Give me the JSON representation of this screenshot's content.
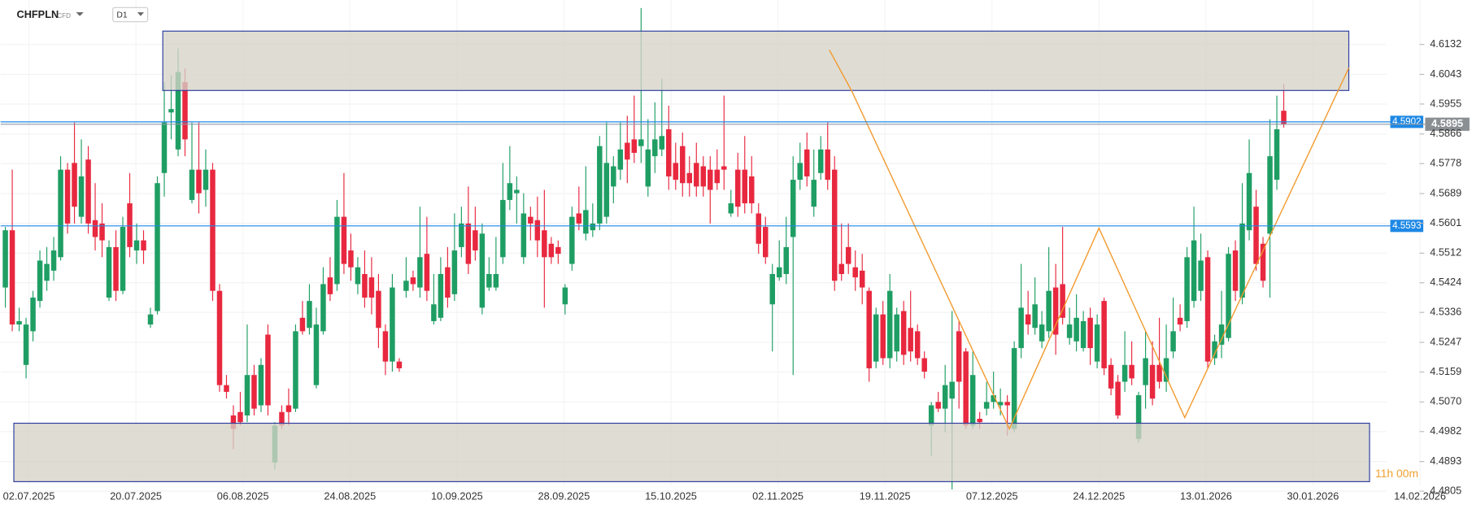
{
  "header": {
    "symbol": "CHFPLN",
    "instrument_type": "CFD",
    "timeframe": "D1"
  },
  "chart_data": {
    "type": "candlestick",
    "open": [
      4.541,
      4.558,
      4.53,
      4.518,
      4.528,
      4.537,
      4.543,
      4.546,
      4.55,
      4.576,
      4.578,
      4.562,
      4.579,
      4.561,
      4.56,
      4.538,
      4.553,
      4.54,
      4.566,
      4.552,
      4.555,
      4.53,
      4.534,
      4.575,
      4.593,
      4.582,
      4.602,
      4.567,
      4.576,
      4.57,
      4.576,
      4.54,
      4.512,
      4.503,
      4.504,
      4.503,
      4.515,
      4.506,
      4.527,
      4.489,
      4.504,
      4.506,
      4.505,
      4.532,
      4.529,
      4.512,
      4.528,
      4.544,
      4.542,
      4.562,
      4.552,
      4.542,
      4.545,
      4.544,
      4.54,
      4.528,
      4.519,
      4.519,
      4.54,
      4.544,
      4.541,
      4.551,
      4.531,
      4.532,
      4.547,
      4.539,
      4.553,
      4.56,
      4.558,
      4.535,
      4.541,
      4.541,
      4.55,
      4.567,
      4.569,
      4.55,
      4.562,
      4.561,
      4.558,
      4.554,
      4.553,
      4.536,
      4.548,
      4.563,
      4.557,
      4.558,
      4.56,
      4.562,
      4.571,
      4.576,
      4.584,
      4.585,
      4.583,
      4.571,
      4.58,
      4.582,
      4.588,
      4.578,
      4.583,
      4.575,
      4.578,
      4.577,
      4.576,
      4.576,
      4.577,
      4.563,
      4.576,
      4.576,
      4.574,
      4.563,
      4.559,
      4.536,
      4.544,
      4.545,
      4.556,
      4.573,
      4.582,
      4.565,
      4.575,
      4.582,
      4.576,
      4.548,
      4.553,
      4.547,
      4.546,
      4.54,
      4.519,
      4.533,
      4.52,
      4.522,
      4.534,
      4.529,
      4.528,
      4.52,
      4.5,
      4.507,
      4.505,
      4.508,
      4.528,
      4.522,
      4.5,
      4.502,
      4.505,
      4.507,
      4.506,
      4.507,
      4.499,
      4.523,
      4.533,
      4.529,
      4.525,
      4.528,
      4.541,
      4.542,
      4.526,
      4.525,
      4.523,
      4.532,
      4.519,
      4.537,
      4.518,
      4.513,
      4.513,
      4.518,
      4.496,
      4.512,
      4.518,
      4.518,
      4.513,
      4.522,
      4.532,
      4.531,
      4.537,
      4.54,
      4.55,
      4.52,
      4.524,
      4.526,
      4.552,
      4.538,
      4.558,
      4.565,
      4.554,
      4.557,
      4.573,
      4.5935
    ],
    "high": [
      4.559,
      4.576,
      4.535,
      4.532,
      4.54,
      4.552,
      4.553,
      4.556,
      4.58,
      4.578,
      4.59,
      4.585,
      4.583,
      4.572,
      4.566,
      4.555,
      4.558,
      4.562,
      4.575,
      4.56,
      4.558,
      4.535,
      4.574,
      4.602,
      4.604,
      4.612,
      4.606,
      4.59,
      4.59,
      4.582,
      4.578,
      4.542,
      4.515,
      4.506,
      4.51,
      4.53,
      4.518,
      4.52,
      4.53,
      4.501,
      4.506,
      4.511,
      4.53,
      4.537,
      4.542,
      4.535,
      4.547,
      4.55,
      4.567,
      4.575,
      4.557,
      4.55,
      4.552,
      4.55,
      4.545,
      4.53,
      4.545,
      4.52,
      4.55,
      4.546,
      4.565,
      4.562,
      4.545,
      4.55,
      4.553,
      4.563,
      4.565,
      4.571,
      4.565,
      4.56,
      4.55,
      4.556,
      4.578,
      4.583,
      4.574,
      4.569,
      4.565,
      4.568,
      4.57,
      4.556,
      4.555,
      4.542,
      4.565,
      4.571,
      4.577,
      4.566,
      4.586,
      4.59,
      4.58,
      4.59,
      4.592,
      4.598,
      4.624,
      4.591,
      4.596,
      4.603,
      4.595,
      4.584,
      4.587,
      4.58,
      4.584,
      4.58,
      4.58,
      4.582,
      4.598,
      4.57,
      4.581,
      4.586,
      4.58,
      4.566,
      4.562,
      4.548,
      4.555,
      4.562,
      4.58,
      4.584,
      4.587,
      4.582,
      4.586,
      4.59,
      4.58,
      4.56,
      4.56,
      4.552,
      4.551,
      4.541,
      4.535,
      4.537,
      4.545,
      4.535,
      4.537,
      4.54,
      4.53,
      4.522,
      4.507,
      4.51,
      4.518,
      4.534,
      4.531,
      4.523,
      4.522,
      4.504,
      4.513,
      4.516,
      4.511,
      4.509,
      4.525,
      4.548,
      4.54,
      4.544,
      4.534,
      4.553,
      4.548,
      4.559,
      4.535,
      4.539,
      4.534,
      4.535,
      4.533,
      4.538,
      4.52,
      4.515,
      4.528,
      4.525,
      4.51,
      4.528,
      4.525,
      4.532,
      4.53,
      4.538,
      4.536,
      4.553,
      4.565,
      4.557,
      4.552,
      4.527,
      4.54,
      4.553,
      4.555,
      4.572,
      4.585,
      4.57,
      4.556,
      4.591,
      4.598,
      4.6015
    ],
    "low": [
      4.535,
      4.528,
      4.528,
      4.514,
      4.525,
      4.535,
      4.54,
      4.543,
      4.549,
      4.557,
      4.56,
      4.56,
      4.557,
      4.552,
      4.55,
      4.537,
      4.537,
      4.539,
      4.55,
      4.548,
      4.548,
      4.529,
      4.533,
      4.568,
      4.585,
      4.58,
      4.58,
      4.566,
      4.563,
      4.565,
      4.537,
      4.51,
      4.508,
      4.493,
      4.5,
      4.501,
      4.503,
      4.504,
      4.503,
      4.487,
      4.499,
      4.5,
      4.504,
      4.527,
      4.527,
      4.511,
      4.527,
      4.537,
      4.54,
      4.545,
      4.543,
      4.539,
      4.535,
      4.533,
      4.523,
      4.515,
      4.516,
      4.516,
      4.538,
      4.54,
      4.538,
      4.537,
      4.53,
      4.531,
      4.535,
      4.537,
      4.55,
      4.545,
      4.549,
      4.533,
      4.54,
      4.54,
      4.548,
      4.564,
      4.56,
      4.548,
      4.555,
      4.55,
      4.535,
      4.548,
      4.548,
      4.533,
      4.546,
      4.558,
      4.555,
      4.556,
      4.558,
      4.56,
      4.566,
      4.573,
      4.572,
      4.578,
      4.578,
      4.568,
      4.575,
      4.58,
      4.57,
      4.57,
      4.568,
      4.568,
      4.568,
      4.568,
      4.56,
      4.57,
      4.57,
      4.562,
      4.562,
      4.563,
      4.563,
      4.551,
      4.548,
      4.522,
      4.543,
      4.542,
      4.515,
      4.57,
      4.571,
      4.562,
      4.573,
      4.57,
      4.54,
      4.543,
      4.545,
      4.54,
      4.536,
      4.513,
      4.517,
      4.518,
      4.517,
      4.519,
      4.518,
      4.519,
      4.518,
      4.514,
      4.491,
      4.504,
      4.498,
      4.481,
      4.505,
      4.499,
      4.499,
      4.499,
      4.503,
      4.505,
      4.503,
      4.497,
      4.498,
      4.52,
      4.527,
      4.527,
      4.523,
      4.526,
      4.521,
      4.53,
      4.524,
      4.522,
      4.522,
      4.518,
      4.517,
      4.515,
      4.509,
      4.502,
      4.51,
      4.512,
      4.495,
      4.505,
      4.506,
      4.511,
      4.51,
      4.52,
      4.528,
      4.529,
      4.535,
      4.537,
      4.517,
      4.518,
      4.52,
      4.525,
      4.537,
      4.536,
      4.555,
      4.546,
      4.541,
      4.538,
      4.57,
      4.5885
    ],
    "close": [
      4.558,
      4.53,
      4.531,
      4.53,
      4.538,
      4.549,
      4.548,
      4.552,
      4.576,
      4.56,
      4.565,
      4.574,
      4.56,
      4.556,
      4.555,
      4.553,
      4.54,
      4.559,
      4.553,
      4.555,
      4.552,
      4.533,
      4.572,
      4.59,
      4.594,
      4.605,
      4.585,
      4.576,
      4.569,
      4.576,
      4.54,
      4.512,
      4.51,
      4.499,
      4.501,
      4.515,
      4.505,
      4.518,
      4.506,
      4.5,
      4.5,
      4.504,
      4.528,
      4.528,
      4.537,
      4.53,
      4.542,
      4.539,
      4.562,
      4.548,
      4.547,
      4.547,
      4.538,
      4.538,
      4.529,
      4.519,
      4.541,
      4.517,
      4.543,
      4.542,
      4.55,
      4.54,
      4.536,
      4.545,
      4.538,
      4.552,
      4.56,
      4.548,
      4.552,
      4.557,
      4.545,
      4.545,
      4.567,
      4.572,
      4.57,
      4.563,
      4.56,
      4.555,
      4.55,
      4.55,
      4.551,
      4.541,
      4.562,
      4.56,
      4.564,
      4.56,
      4.583,
      4.578,
      4.577,
      4.582,
      4.579,
      4.581,
      4.585,
      4.582,
      4.585,
      4.586,
      4.574,
      4.573,
      4.572,
      4.572,
      4.571,
      4.571,
      4.57,
      4.572,
      4.576,
      4.566,
      4.565,
      4.566,
      4.566,
      4.554,
      4.55,
      4.545,
      4.547,
      4.553,
      4.573,
      4.578,
      4.574,
      4.573,
      4.582,
      4.573,
      4.543,
      4.545,
      4.548,
      4.544,
      4.541,
      4.517,
      4.533,
      4.52,
      4.54,
      4.533,
      4.521,
      4.522,
      4.52,
      4.516,
      4.506,
      4.505,
      4.512,
      4.513,
      4.513,
      4.5,
      4.515,
      4.501,
      4.507,
      4.509,
      4.507,
      4.506,
      4.523,
      4.535,
      4.53,
      4.536,
      4.53,
      4.54,
      4.527,
      4.532,
      4.53,
      4.532,
      4.531,
      4.523,
      4.53,
      4.517,
      4.511,
      4.503,
      4.518,
      4.514,
      4.509,
      4.52,
      4.508,
      4.513,
      4.52,
      4.528,
      4.53,
      4.55,
      4.555,
      4.549,
      4.519,
      4.525,
      4.53,
      4.551,
      4.54,
      4.56,
      4.575,
      4.548,
      4.543,
      4.58,
      4.588,
      4.5895
    ],
    "up_color": "#1f9e64",
    "down_color": "#e8283f",
    "x_labels": [
      "02.07.2025",
      "20.07.2025",
      "06.08.2025",
      "24.08.2025",
      "10.09.2025",
      "28.09.2025",
      "15.10.2025",
      "02.11.2025",
      "19.11.2025",
      "07.12.2025",
      "24.12.2025",
      "13.01.2026",
      "30.01.2026",
      "14.02.2026"
    ],
    "ylim": [
      4.478,
      4.6264
    ],
    "yticks": [
      4.6132,
      4.6043,
      4.5955,
      4.5866,
      4.5778,
      4.5689,
      4.5601,
      4.5512,
      4.5424,
      4.5336,
      4.5247,
      4.5159,
      {
        "value": 4.507,
        "label": "4.5070"
      },
      4.4982,
      4.4893,
      4.4805
    ],
    "levels": [
      4.5902,
      4.5593
    ],
    "level_color": "#1e88e5",
    "current_price": 4.5895,
    "countdown": "11h 00m",
    "grid": true
  }
}
